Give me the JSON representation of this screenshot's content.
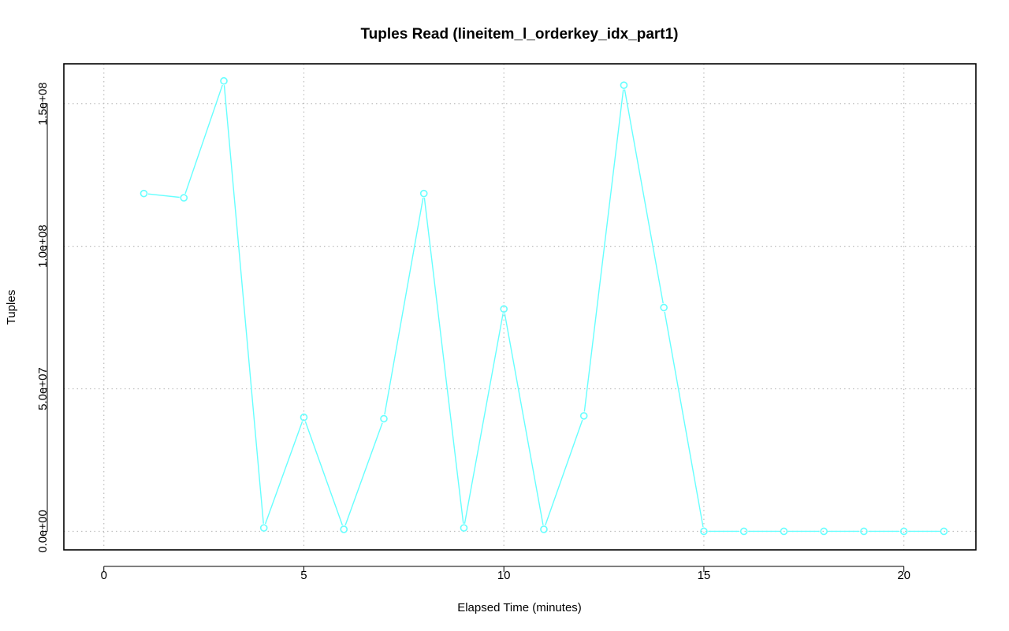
{
  "chart_data": {
    "type": "line",
    "title": "Tuples Read (lineitem_l_orderkey_idx_part1)",
    "xlabel": "Elapsed Time (minutes)",
    "ylabel": "Tuples",
    "xlim": [
      -1,
      21.8
    ],
    "ylim": [
      -6500000,
      164000000
    ],
    "x_ticks": [
      0,
      5,
      10,
      15,
      20
    ],
    "x_tick_labels": [
      "0",
      "5",
      "10",
      "15",
      "20"
    ],
    "y_ticks": [
      0,
      50000000,
      100000000,
      150000000
    ],
    "y_tick_labels": [
      "0.0e+00",
      "5.0e+07",
      "1.0e+08",
      "1.5e+08"
    ],
    "grid": true,
    "series": [
      {
        "color": "#66ffff",
        "marker": "circle",
        "x": [
          1,
          2,
          3,
          4,
          5,
          6,
          7,
          8,
          9,
          10,
          11,
          12,
          13,
          14,
          15,
          16,
          17,
          18,
          19,
          20,
          21
        ],
        "y": [
          118500000,
          117000000,
          158000000,
          1200000,
          40000000,
          700000,
          39500000,
          118500000,
          1200000,
          78000000,
          700000,
          40500000,
          156500000,
          78500000,
          0,
          0,
          0,
          0,
          0,
          0,
          0
        ]
      }
    ]
  }
}
